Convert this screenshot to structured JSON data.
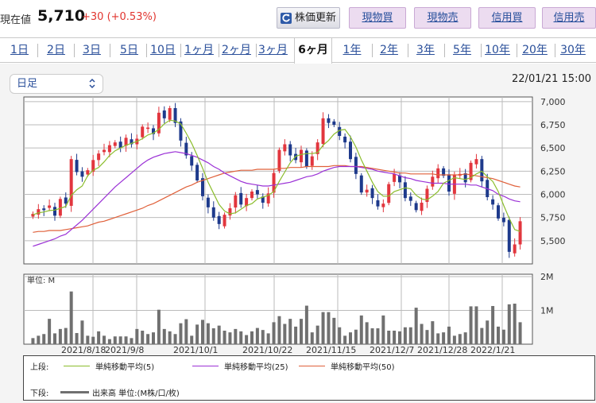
{
  "header": {
    "price_label": "現在値",
    "price_value": "5,710",
    "price_change": "+30 (+0.53%)",
    "refresh_label": "株価更新",
    "genbutsu_buy": "現物買",
    "genbutsu_sell": "現物売",
    "shinyo_buy": "信用買",
    "shinyo_sell": "信用売"
  },
  "tabs": [
    {
      "label": "1日"
    },
    {
      "label": "2日"
    },
    {
      "label": "3日"
    },
    {
      "label": "5日"
    },
    {
      "label": "10日"
    },
    {
      "label": "1ヶ月"
    },
    {
      "label": "2ヶ月"
    },
    {
      "label": "3ヶ月"
    },
    {
      "label": "6ヶ月",
      "active": true
    },
    {
      "label": "1年"
    },
    {
      "label": "2年"
    },
    {
      "label": "3年"
    },
    {
      "label": "5年"
    },
    {
      "label": "10年"
    },
    {
      "label": "20年"
    },
    {
      "label": "30年"
    }
  ],
  "chart_controls": {
    "interval_select": "日足",
    "timestamp": "22/01/21 15:00"
  },
  "chart_data": {
    "type": "candlestick",
    "price_axis": {
      "ticks": [
        "7,000",
        "6,750",
        "6,500",
        "6,250",
        "6,000",
        "5,750",
        "5,500"
      ],
      "ylim": [
        5250,
        7050
      ]
    },
    "volume_axis": {
      "unit_label": "単位: M",
      "ticks": [
        "2M",
        "1M"
      ],
      "ylim": [
        0,
        2.0
      ]
    },
    "x_ticks": [
      "2021/8/18",
      "2021/9/8",
      "2021/10/1",
      "2021/10/22",
      "2021/11/15",
      "2021/12/7",
      "2021/12/28",
      "2022/1/21"
    ],
    "colors": {
      "up": "#e2363e",
      "down": "#1e3a8c",
      "ma5": "#8bbd2c",
      "ma25": "#9b31d6",
      "ma50": "#e0603a",
      "volume": "#707070"
    },
    "closes": [
      5790,
      5840,
      5830,
      5880,
      5770,
      5950,
      5900,
      6380,
      6240,
      6190,
      6260,
      6370,
      6440,
      6480,
      6530,
      6560,
      6500,
      6610,
      6540,
      6600,
      6730,
      6720,
      6650,
      6880,
      6820,
      6930,
      6770,
      6580,
      6420,
      6310,
      6150,
      5980,
      5860,
      5750,
      5680,
      5780,
      5850,
      5990,
      5890,
      5960,
      6030,
      6000,
      5910,
      6010,
      6230,
      6480,
      6540,
      6420,
      6370,
      6480,
      6300,
      6410,
      6560,
      6820,
      6770,
      6750,
      6630,
      6560,
      6380,
      6220,
      6020,
      6050,
      5960,
      5870,
      5900,
      6110,
      6220,
      6130,
      5960,
      5930,
      5830,
      5910,
      6060,
      6190,
      6280,
      6200,
      6030,
      6210,
      6220,
      6130,
      6340,
      6380,
      6140,
      5970,
      5890,
      5740,
      5700,
      5380,
      5460,
      5710
    ],
    "volumes": [
      0.18,
      0.25,
      0.3,
      0.75,
      0.32,
      0.45,
      0.48,
      1.56,
      0.33,
      0.7,
      0.25,
      0.22,
      0.38,
      0.25,
      0.15,
      0.23,
      0.23,
      0.23,
      0.18,
      0.45,
      0.4,
      0.3,
      0.35,
      1.02,
      0.45,
      0.38,
      0.3,
      0.62,
      0.74,
      0.25,
      0.58,
      0.72,
      0.62,
      0.47,
      0.55,
      0.4,
      0.35,
      0.45,
      0.38,
      0.27,
      0.38,
      0.48,
      0.42,
      0.32,
      0.65,
      0.83,
      0.6,
      0.75,
      0.52,
      0.75,
      1.14,
      0.35,
      0.55,
      0.95,
      0.95,
      0.78,
      0.5,
      0.25,
      0.35,
      0.43,
      0.85,
      0.65,
      0.47,
      0.47,
      0.85,
      0.4,
      0.4,
      0.38,
      0.5,
      0.5,
      1.08,
      0.6,
      0.42,
      0.68,
      0.32,
      0.35,
      0.52,
      0.25,
      0.3,
      0.35,
      1.12,
      1.12,
      0.48,
      0.7,
      1.13,
      0.52,
      0.43,
      1.18,
      1.2,
      0.65
    ],
    "ma5": [
      5780,
      5800,
      5810,
      5825,
      5830,
      5850,
      5870,
      5990,
      6050,
      6090,
      6200,
      6260,
      6290,
      6350,
      6420,
      6470,
      6500,
      6530,
      6550,
      6570,
      6600,
      6640,
      6660,
      6700,
      6760,
      6800,
      6790,
      6760,
      6660,
      6550,
      6420,
      6280,
      6130,
      6010,
      5890,
      5820,
      5790,
      5800,
      5840,
      5880,
      5900,
      5950,
      5970,
      5990,
      6030,
      6140,
      6240,
      6340,
      6410,
      6430,
      6440,
      6440,
      6450,
      6530,
      6580,
      6650,
      6690,
      6700,
      6620,
      6510,
      6370,
      6250,
      6130,
      6030,
      5980,
      5980,
      6030,
      6050,
      6070,
      6060,
      5990,
      5950,
      5940,
      5980,
      6030,
      6120,
      6150,
      6180,
      6170,
      6160,
      6180,
      6220,
      6250,
      6190,
      6140,
      6030,
      5880,
      5740,
      5620,
      5600
    ],
    "ma25": [
      5440,
      5460,
      5480,
      5500,
      5520,
      5550,
      5570,
      5620,
      5670,
      5720,
      5780,
      5840,
      5900,
      5960,
      6020,
      6080,
      6130,
      6180,
      6230,
      6280,
      6330,
      6370,
      6400,
      6420,
      6440,
      6450,
      6460,
      6450,
      6440,
      6420,
      6400,
      6370,
      6340,
      6300,
      6270,
      6230,
      6200,
      6170,
      6140,
      6120,
      6110,
      6100,
      6090,
      6090,
      6100,
      6110,
      6120,
      6130,
      6150,
      6170,
      6190,
      6200,
      6220,
      6250,
      6270,
      6290,
      6300,
      6300,
      6300,
      6300,
      6290,
      6280,
      6270,
      6250,
      6240,
      6230,
      6220,
      6200,
      6180,
      6170,
      6150,
      6140,
      6130,
      6120,
      6120,
      6120,
      6110,
      6110,
      6110,
      6110,
      6100,
      6100,
      6080,
      6060,
      6040,
      6000,
      5980,
      5950,
      5930,
      5920
    ],
    "ma50": [
      5590,
      5600,
      5600,
      5610,
      5610,
      5610,
      5620,
      5630,
      5640,
      5650,
      5660,
      5680,
      5700,
      5710,
      5730,
      5750,
      5770,
      5790,
      5810,
      5830,
      5850,
      5880,
      5900,
      5930,
      5960,
      5990,
      6020,
      6050,
      6080,
      6100,
      6130,
      6150,
      6170,
      6190,
      6210,
      6230,
      6240,
      6250,
      6260,
      6260,
      6260,
      6270,
      6270,
      6270,
      6270,
      6280,
      6280,
      6290,
      6290,
      6290,
      6300,
      6300,
      6300,
      6300,
      6300,
      6310,
      6310,
      6310,
      6300,
      6300,
      6300,
      6290,
      6280,
      6270,
      6260,
      6250,
      6240,
      6230,
      6230,
      6220,
      6220,
      6220,
      6220,
      6220,
      6210,
      6210,
      6210,
      6210,
      6210,
      6220,
      6210,
      6200,
      6190,
      6180,
      6170,
      6150,
      6130,
      6110,
      6090,
      6080
    ]
  },
  "legend": {
    "upper_label": "上段:",
    "lower_label": "下段:",
    "ma5_label": "単純移動平均(5)",
    "ma25_label": "単純移動平均(25)",
    "ma50_label": "単純移動平均(50)",
    "volume_label": "出来高 単位:(M株/口/枚)"
  }
}
